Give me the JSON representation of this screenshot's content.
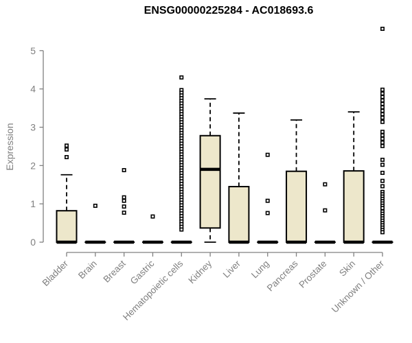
{
  "title": "ENSG00000225284 - AC018693.6",
  "colors": {
    "background": "#FFFFFF",
    "box_fill": "#EDE7CB",
    "box_border": "#000000",
    "median_line": "#000000",
    "whisker": "#000000",
    "outlier_stroke": "#000000",
    "outlier_fill": "#FFFFFF",
    "axis_line": "#808080",
    "tick_text": "#7F7F7F",
    "title_text": "#000000"
  },
  "chart_data": {
    "type": "boxplot",
    "title": "ENSG00000225284 - AC018693.6",
    "xlabel": "",
    "ylabel": "Expression",
    "ylim": [
      0,
      5.6
    ],
    "y_ticks": [
      0,
      1,
      2,
      3,
      4,
      5
    ],
    "grid": false,
    "legend": "none",
    "categories": [
      "Bladder",
      "Brain",
      "Breast",
      "Gastric",
      "Hematopoietic cells",
      "Kidney",
      "Liver",
      "Lung",
      "Pancreas",
      "Prostate",
      "Skin",
      "Unknown / Other"
    ],
    "boxes": [
      {
        "label": "Bladder",
        "q1": 0,
        "median": 0,
        "q3": 0.82,
        "whisker_low": 0,
        "whisker_high": 1.76,
        "outliers": [
          2.52,
          2.42,
          2.22
        ]
      },
      {
        "label": "Brain",
        "q1": 0,
        "median": 0,
        "q3": 0,
        "whisker_low": 0,
        "whisker_high": 0,
        "outliers": [
          0.95
        ]
      },
      {
        "label": "Breast",
        "q1": 0,
        "median": 0,
        "q3": 0,
        "whisker_low": 0,
        "whisker_high": 0,
        "outliers": [
          1.88,
          1.17,
          1.08,
          0.93,
          0.77
        ]
      },
      {
        "label": "Gastric",
        "q1": 0,
        "median": 0,
        "q3": 0,
        "whisker_low": 0,
        "whisker_high": 0,
        "outliers": [
          0.67
        ]
      },
      {
        "label": "Hematopoietic cells",
        "q1": 0,
        "median": 0,
        "q3": 0,
        "whisker_low": 0,
        "whisker_high": 0,
        "outliers": [
          4.3,
          3.97,
          3.9,
          3.83,
          3.76,
          3.69,
          3.62,
          3.55,
          3.48,
          3.41,
          3.34,
          3.27,
          3.2,
          3.13,
          3.06,
          2.99,
          2.92,
          2.85,
          2.78,
          2.71,
          2.64,
          2.57,
          2.5,
          2.43,
          2.36,
          2.29,
          2.22,
          2.15,
          2.08,
          2.01,
          1.94,
          1.87,
          1.8,
          1.73,
          1.66,
          1.59,
          1.52,
          1.45,
          1.38,
          1.31,
          1.24,
          1.17,
          1.1,
          1.03,
          0.96,
          0.89,
          0.82,
          0.75,
          0.68,
          0.61,
          0.54,
          0.47,
          0.4,
          0.33
        ]
      },
      {
        "label": "Kidney",
        "q1": 0.37,
        "median": 1.9,
        "q3": 2.78,
        "whisker_low": 0,
        "whisker_high": 3.74,
        "outliers": []
      },
      {
        "label": "Liver",
        "q1": 0,
        "median": 0,
        "q3": 1.45,
        "whisker_low": 0,
        "whisker_high": 3.37,
        "outliers": []
      },
      {
        "label": "Lung",
        "q1": 0,
        "median": 0,
        "q3": 0,
        "whisker_low": 0,
        "whisker_high": 0,
        "outliers": [
          2.28,
          1.08,
          0.76
        ]
      },
      {
        "label": "Pancreas",
        "q1": 0,
        "median": 0,
        "q3": 1.85,
        "whisker_low": 0,
        "whisker_high": 3.19,
        "outliers": []
      },
      {
        "label": "Prostate",
        "q1": 0,
        "median": 0,
        "q3": 0,
        "whisker_low": 0,
        "whisker_high": 0,
        "outliers": [
          1.51,
          0.83
        ]
      },
      {
        "label": "Skin",
        "q1": 0,
        "median": 0,
        "q3": 1.86,
        "whisker_low": 0,
        "whisker_high": 3.4,
        "outliers": []
      },
      {
        "label": "Unknown / Other",
        "q1": 0,
        "median": 0,
        "q3": 0,
        "whisker_low": 0,
        "whisker_high": 0,
        "outliers": [
          5.57,
          3.98,
          3.88,
          3.79,
          3.7,
          3.61,
          3.52,
          3.43,
          3.34,
          3.25,
          3.14,
          2.88,
          2.79,
          2.7,
          2.6,
          2.51,
          2.15,
          2.02,
          1.81,
          1.6,
          1.46,
          1.31,
          1.25,
          1.19,
          1.13,
          1.07,
          1.01,
          0.95,
          0.89,
          0.8,
          0.74,
          0.68,
          0.62,
          0.56,
          0.5,
          0.44,
          0.38,
          0.32,
          0.26
        ]
      }
    ]
  }
}
